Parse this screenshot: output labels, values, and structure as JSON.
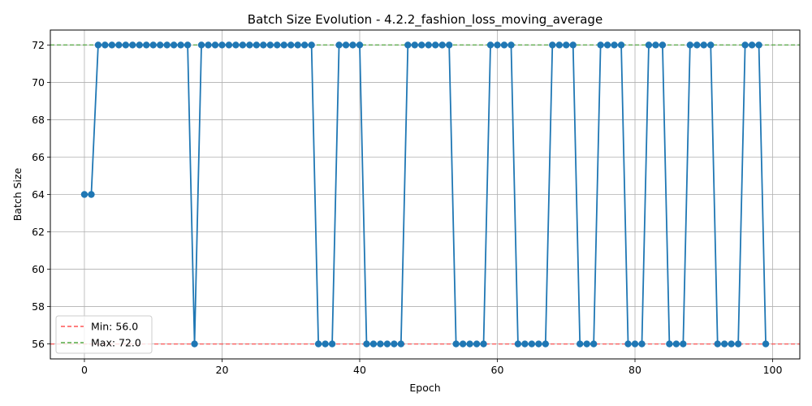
{
  "chart_data": {
    "type": "line",
    "title": "Batch Size Evolution - 4.2.2_fashion_loss_moving_average",
    "xlabel": "Epoch",
    "ylabel": "Batch Size",
    "xlim": [
      -4.95,
      103.95
    ],
    "ylim": [
      55.2,
      72.8
    ],
    "xticks": [
      0,
      20,
      40,
      60,
      80,
      100
    ],
    "yticks": [
      56,
      58,
      60,
      62,
      64,
      66,
      68,
      70,
      72
    ],
    "grid": true,
    "legend_position": "lower-left",
    "series": [
      {
        "color": "#1f77b4",
        "marker": "circle",
        "x": [
          0,
          1,
          2,
          3,
          4,
          5,
          6,
          7,
          8,
          9,
          10,
          11,
          12,
          13,
          14,
          15,
          16,
          17,
          18,
          19,
          20,
          21,
          22,
          23,
          24,
          25,
          26,
          27,
          28,
          29,
          30,
          31,
          32,
          33,
          34,
          35,
          36,
          37,
          38,
          39,
          40,
          41,
          42,
          43,
          44,
          45,
          46,
          47,
          48,
          49,
          50,
          51,
          52,
          53,
          54,
          55,
          56,
          57,
          58,
          59,
          60,
          61,
          62,
          63,
          64,
          65,
          66,
          67,
          68,
          69,
          70,
          71,
          72,
          73,
          74,
          75,
          76,
          77,
          78,
          79,
          80,
          81,
          82,
          83,
          84,
          85,
          86,
          87,
          88,
          89,
          90,
          91,
          92,
          93,
          94,
          95,
          96,
          97,
          98,
          99
        ],
        "y": [
          64,
          64,
          72,
          72,
          72,
          72,
          72,
          72,
          72,
          72,
          72,
          72,
          72,
          72,
          72,
          72,
          56,
          72,
          72,
          72,
          72,
          72,
          72,
          72,
          72,
          72,
          72,
          72,
          72,
          72,
          72,
          72,
          72,
          72,
          56,
          56,
          56,
          72,
          72,
          72,
          72,
          56,
          56,
          56,
          56,
          56,
          56,
          72,
          72,
          72,
          72,
          72,
          72,
          72,
          56,
          56,
          56,
          56,
          56,
          72,
          72,
          72,
          72,
          56,
          56,
          56,
          56,
          56,
          72,
          72,
          72,
          72,
          56,
          56,
          56,
          72,
          72,
          72,
          72,
          56,
          56,
          56,
          72,
          72,
          72,
          56,
          56,
          56,
          72,
          72,
          72,
          72,
          56,
          56,
          56,
          56,
          72,
          72,
          72,
          56
        ]
      }
    ],
    "reference_lines": [
      {
        "name": "Min: 56.0",
        "value": 56.0,
        "color": "#ff5555",
        "style": "dashed"
      },
      {
        "name": "Max: 72.0",
        "value": 72.0,
        "color": "#55aa44",
        "style": "dashed"
      }
    ]
  }
}
